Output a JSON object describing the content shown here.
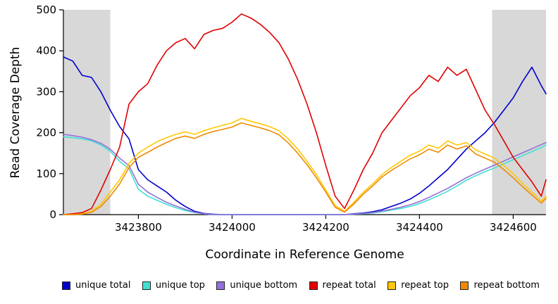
{
  "chart_data": {
    "type": "line",
    "title": "",
    "xlabel": "Coordinate in Reference Genome",
    "ylabel": "Read Coverage Depth",
    "xlim": [
      3423640,
      3424670
    ],
    "ylim": [
      0,
      500
    ],
    "xticks": [
      3423800,
      3424000,
      3424200,
      3424400,
      3424600
    ],
    "yticks": [
      0,
      100,
      200,
      300,
      400,
      500
    ],
    "grid": false,
    "legend_position": "bottom",
    "shaded_regions": [
      {
        "x0": 3423640,
        "x1": 3423740,
        "color": "#d8d8d8"
      },
      {
        "x0": 3424555,
        "x1": 3424670,
        "color": "#d8d8d8"
      }
    ],
    "x": [
      3423640,
      3423660,
      3423680,
      3423700,
      3423720,
      3423740,
      3423760,
      3423780,
      3423800,
      3423820,
      3423840,
      3423860,
      3423880,
      3423900,
      3423920,
      3423940,
      3423960,
      3423980,
      3424000,
      3424020,
      3424040,
      3424060,
      3424080,
      3424100,
      3424120,
      3424140,
      3424160,
      3424180,
      3424200,
      3424220,
      3424240,
      3424260,
      3424280,
      3424300,
      3424320,
      3424340,
      3424360,
      3424380,
      3424400,
      3424420,
      3424440,
      3424460,
      3424480,
      3424500,
      3424520,
      3424540,
      3424560,
      3424580,
      3424600,
      3424620,
      3424640,
      3424660,
      3424670
    ],
    "series": [
      {
        "name": "unique total",
        "color": "#0000cd",
        "values": [
          385,
          375,
          340,
          335,
          300,
          255,
          215,
          185,
          110,
          85,
          70,
          55,
          35,
          20,
          8,
          3,
          1,
          0,
          0,
          0,
          0,
          0,
          0,
          0,
          0,
          0,
          0,
          0,
          0,
          0,
          0,
          2,
          4,
          7,
          12,
          20,
          28,
          38,
          52,
          70,
          90,
          110,
          135,
          160,
          180,
          200,
          225,
          255,
          285,
          325,
          360,
          315,
          295
        ]
      },
      {
        "name": "unique top",
        "color": "#40e0d0",
        "values": [
          190,
          188,
          185,
          180,
          170,
          155,
          130,
          112,
          62,
          45,
          35,
          25,
          17,
          10,
          5,
          2,
          0,
          0,
          0,
          0,
          0,
          0,
          0,
          0,
          0,
          0,
          0,
          0,
          0,
          0,
          0,
          1,
          2,
          4,
          7,
          11,
          15,
          20,
          27,
          36,
          46,
          57,
          70,
          84,
          95,
          105,
          114,
          124,
          134,
          144,
          154,
          164,
          170
        ]
      },
      {
        "name": "unique bottom",
        "color": "#9370db",
        "values": [
          196,
          193,
          189,
          183,
          174,
          160,
          138,
          120,
          74,
          55,
          42,
          30,
          21,
          13,
          6,
          2,
          0,
          0,
          0,
          0,
          0,
          0,
          0,
          0,
          0,
          0,
          0,
          0,
          0,
          0,
          0,
          1,
          3,
          5,
          9,
          13,
          18,
          24,
          32,
          42,
          53,
          64,
          77,
          90,
          101,
          111,
          121,
          131,
          141,
          151,
          161,
          171,
          176
        ]
      },
      {
        "name": "repeat total",
        "color": "#e00000",
        "values": [
          0,
          2,
          5,
          15,
          60,
          110,
          165,
          270,
          300,
          320,
          365,
          400,
          420,
          430,
          405,
          440,
          450,
          455,
          470,
          490,
          480,
          465,
          445,
          420,
          380,
          330,
          270,
          200,
          120,
          45,
          15,
          60,
          110,
          150,
          200,
          230,
          260,
          290,
          310,
          340,
          325,
          360,
          340,
          355,
          305,
          255,
          220,
          180,
          140,
          110,
          80,
          45,
          85
        ]
      },
      {
        "name": "repeat top",
        "color": "#ffc800",
        "values": [
          0,
          0,
          2,
          8,
          25,
          55,
          85,
          125,
          150,
          165,
          178,
          188,
          196,
          202,
          196,
          205,
          212,
          218,
          224,
          235,
          228,
          222,
          215,
          205,
          185,
          160,
          130,
          98,
          60,
          22,
          8,
          30,
          55,
          75,
          98,
          115,
          130,
          145,
          155,
          170,
          162,
          180,
          170,
          176,
          158,
          148,
          138,
          120,
          100,
          76,
          55,
          33,
          45
        ]
      },
      {
        "name": "repeat bottom",
        "color": "#ef8a00",
        "values": [
          0,
          0,
          1,
          6,
          20,
          45,
          75,
          115,
          140,
          152,
          165,
          176,
          186,
          192,
          186,
          196,
          203,
          208,
          214,
          224,
          218,
          212,
          205,
          195,
          175,
          150,
          122,
          90,
          55,
          18,
          6,
          26,
          50,
          70,
          92,
          108,
          122,
          136,
          146,
          160,
          152,
          170,
          160,
          168,
          148,
          138,
          128,
          110,
          90,
          68,
          48,
          28,
          40
        ]
      }
    ]
  }
}
